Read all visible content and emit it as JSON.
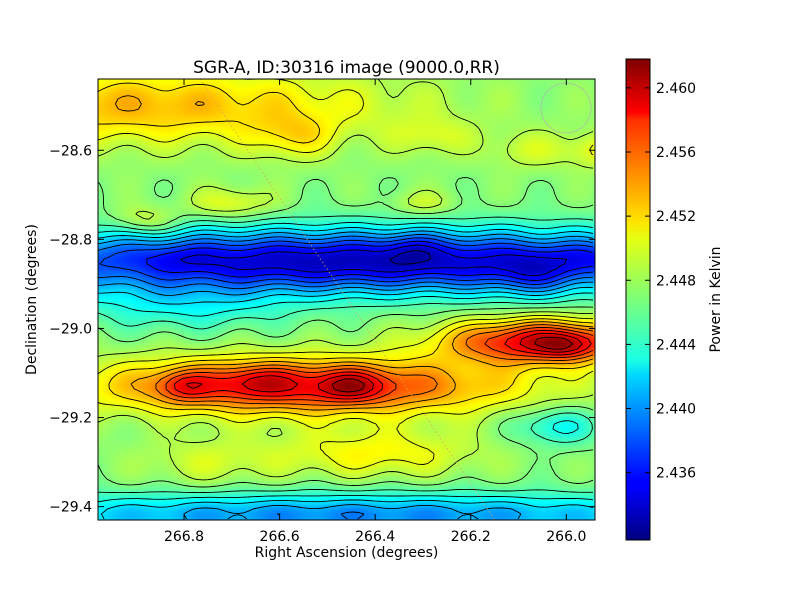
{
  "chart_data": {
    "type": "heatmap",
    "title": "SGR-A, ID:30316 image (9000.0,RR)",
    "xlabel": "Right Ascension (degrees)",
    "ylabel": "Declination (degrees)",
    "colorbar_label": "Power in Kelvin",
    "colormap": "jet",
    "xlim": [
      266.98,
      265.94
    ],
    "ylim": [
      -29.43,
      -28.44
    ],
    "x_ticks": [
      266.8,
      266.6,
      266.4,
      266.2,
      266.0
    ],
    "x_tick_labels": [
      "266.8",
      "266.6",
      "266.4",
      "266.2",
      "266.0"
    ],
    "y_ticks": [
      -28.6,
      -28.8,
      -29.0,
      -29.2,
      -29.4
    ],
    "y_tick_labels": [
      "−28.6",
      "−28.8",
      "−29.0",
      "−29.2",
      "−29.4"
    ],
    "colorbar_range": [
      2.4318,
      2.4618
    ],
    "colorbar_ticks": [
      2.436,
      2.44,
      2.444,
      2.448,
      2.452,
      2.456,
      2.46
    ],
    "colorbar_tick_labels": [
      "2.436",
      "2.440",
      "2.444",
      "2.448",
      "2.452",
      "2.456",
      "2.460"
    ],
    "field_features": [
      {
        "ra": 266.88,
        "dec": -28.5,
        "sigma_ra": 0.35,
        "sigma_dec": 0.06,
        "value": 0.0055
      },
      {
        "ra": 266.57,
        "dec": -28.57,
        "sigma_ra": 0.06,
        "sigma_dec": 0.035,
        "value": 0.003
      },
      {
        "ra": 266.28,
        "dec": -28.57,
        "sigma_ra": 0.06,
        "sigma_dec": 0.03,
        "value": 0.002
      },
      {
        "ra": 266.08,
        "dec": -28.6,
        "sigma_ra": 0.06,
        "sigma_dec": 0.03,
        "value": 0.002
      },
      {
        "ra": 265.93,
        "dec": -28.6,
        "sigma_ra": 0.05,
        "sigma_dec": 0.03,
        "value": 0.003
      },
      {
        "ra": 266.7,
        "dec": -28.72,
        "sigma_ra": 0.06,
        "sigma_dec": 0.025,
        "value": 0.003
      },
      {
        "ra": 266.88,
        "dec": -28.76,
        "sigma_ra": 0.05,
        "sigma_dec": 0.025,
        "value": 0.003
      },
      {
        "ra": 266.3,
        "dec": -28.72,
        "sigma_ra": 0.05,
        "sigma_dec": 0.02,
        "value": 0.002
      },
      {
        "ra": 266.45,
        "dec": -28.85,
        "sigma_ra": 0.6,
        "sigma_dec": 0.05,
        "value": -0.0135
      },
      {
        "ra": 266.07,
        "dec": -28.88,
        "sigma_ra": 0.06,
        "sigma_dec": 0.035,
        "value": -0.003
      },
      {
        "ra": 266.32,
        "dec": -28.82,
        "sigma_ra": 0.04,
        "sigma_dec": 0.025,
        "value": -0.002
      },
      {
        "ra": 266.8,
        "dec": -28.84,
        "sigma_ra": 0.05,
        "sigma_dec": 0.02,
        "value": -0.001
      },
      {
        "ra": 265.95,
        "dec": -28.84,
        "sigma_ra": 0.05,
        "sigma_dec": 0.025,
        "value": -0.002
      },
      {
        "ra": 266.8,
        "dec": -28.95,
        "sigma_ra": 0.15,
        "sigma_dec": 0.04,
        "value": -0.003
      },
      {
        "ra": 266.55,
        "dec": -29.13,
        "sigma_ra": 0.3,
        "sigma_dec": 0.045,
        "value": 0.0105
      },
      {
        "ra": 266.8,
        "dec": -29.13,
        "sigma_ra": 0.04,
        "sigma_dec": 0.025,
        "value": 0.004
      },
      {
        "ra": 266.45,
        "dec": -29.13,
        "sigma_ra": 0.05,
        "sigma_dec": 0.025,
        "value": 0.004
      },
      {
        "ra": 266.65,
        "dec": -29.12,
        "sigma_ra": 0.06,
        "sigma_dec": 0.025,
        "value": 0.003
      },
      {
        "ra": 266.05,
        "dec": -29.03,
        "sigma_ra": 0.14,
        "sigma_dec": 0.035,
        "value": 0.012
      },
      {
        "ra": 266.0,
        "dec": -29.04,
        "sigma_ra": 0.04,
        "sigma_dec": 0.02,
        "value": 0.003
      },
      {
        "ra": 266.4,
        "dec": -29.28,
        "sigma_ra": 0.15,
        "sigma_dec": 0.04,
        "value": 0.0035
      },
      {
        "ra": 266.02,
        "dec": -29.22,
        "sigma_ra": 0.06,
        "sigma_dec": 0.03,
        "value": -0.004
      },
      {
        "ra": 266.45,
        "dec": -29.42,
        "sigma_ra": 0.6,
        "sigma_dec": 0.035,
        "value": -0.0075
      },
      {
        "ra": 266.75,
        "dec": -29.3,
        "sigma_ra": 0.1,
        "sigma_dec": 0.04,
        "value": 0.002
      }
    ]
  }
}
